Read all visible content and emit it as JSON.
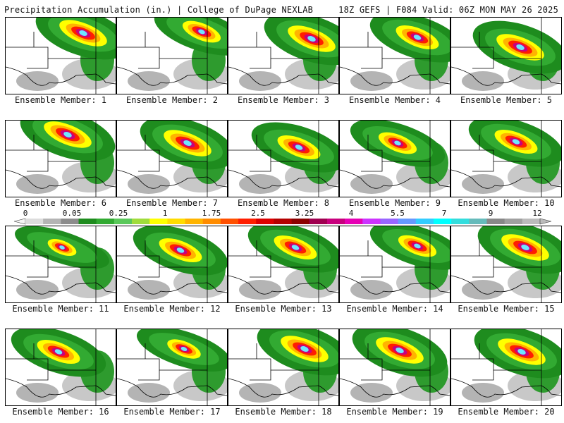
{
  "header": {
    "title": "Precipitation Accumulation (in.) | College of DuPage NEXLAB",
    "run_info": "18Z GEFS | F084 Valid: 06Z MON MAY 26 2025"
  },
  "colorbar": {
    "tick_labels": [
      "0",
      "0.05",
      "0.25",
      "1",
      "1.75",
      "2.5",
      "3.25",
      "4",
      "5.5",
      "7",
      "9",
      "12"
    ],
    "colors": [
      "#dcdcdc",
      "#b4b4b4",
      "#8c8c8c",
      "#1e8c1e",
      "#32aa32",
      "#5ac85a",
      "#a0dc3c",
      "#ffff00",
      "#ffdc00",
      "#ffb400",
      "#ff8c00",
      "#ff5000",
      "#ff1e00",
      "#dc0000",
      "#b40000",
      "#8c0000",
      "#a00050",
      "#c8007d",
      "#e600b4",
      "#cc33ff",
      "#9966ff",
      "#6699ff",
      "#33ccff",
      "#00ffff",
      "#33dddd",
      "#66bbbb",
      "#888888",
      "#a0a0a0",
      "#bbbbbb"
    ]
  },
  "panels": [
    {
      "label": "Ensemble Member: 1"
    },
    {
      "label": "Ensemble Member: 2"
    },
    {
      "label": "Ensemble Member: 3"
    },
    {
      "label": "Ensemble Member: 4"
    },
    {
      "label": "Ensemble Member: 5"
    },
    {
      "label": "Ensemble Member: 6"
    },
    {
      "label": "Ensemble Member: 7"
    },
    {
      "label": "Ensemble Member: 8"
    },
    {
      "label": "Ensemble Member: 9"
    },
    {
      "label": "Ensemble Member: 10"
    },
    {
      "label": "Ensemble Member: 11"
    },
    {
      "label": "Ensemble Member: 12"
    },
    {
      "label": "Ensemble Member: 13"
    },
    {
      "label": "Ensemble Member: 14"
    },
    {
      "label": "Ensemble Member: 15"
    },
    {
      "label": "Ensemble Member: 16"
    },
    {
      "label": "Ensemble Member: 17"
    },
    {
      "label": "Ensemble Member: 18"
    },
    {
      "label": "Ensemble Member: 19"
    },
    {
      "label": "Ensemble Member: 20"
    }
  ]
}
